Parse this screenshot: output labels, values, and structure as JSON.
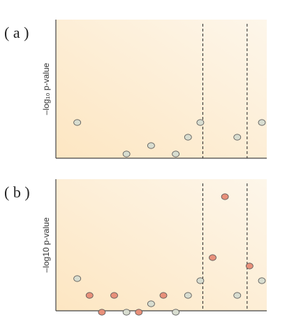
{
  "chart_data": [
    {
      "type": "scatter",
      "panel_label": "( a )",
      "ylabel": "–log₁₀ p-value",
      "xlim": [
        0,
        16
      ],
      "ylim": [
        0,
        10
      ],
      "series": [
        {
          "color": "#d8ddd0",
          "points": [
            {
              "x": 1,
              "y": 2.5
            },
            {
              "x": 5,
              "y": 1.0
            },
            {
              "x": 7,
              "y": 1.4
            },
            {
              "x": 9,
              "y": 1.0
            },
            {
              "x": 10,
              "y": 1.8
            },
            {
              "x": 11,
              "y": 2.5
            },
            {
              "x": 14,
              "y": 1.8
            },
            {
              "x": 16,
              "y": 2.5
            }
          ]
        }
      ],
      "vlines": [
        11.2,
        14.8
      ],
      "background_gradient": [
        "#fde9c8",
        "#fdf4e6"
      ]
    },
    {
      "type": "scatter",
      "panel_label": "( b )",
      "ylabel": "–log10 p-value",
      "xlim": [
        0,
        16
      ],
      "ylim": [
        0,
        10
      ],
      "series": [
        {
          "color": "#d8ddd0",
          "points": [
            {
              "x": 1,
              "y": 2.5
            },
            {
              "x": 5,
              "y": 0.9
            },
            {
              "x": 7,
              "y": 1.3
            },
            {
              "x": 9,
              "y": 0.9
            },
            {
              "x": 10,
              "y": 1.7
            },
            {
              "x": 11,
              "y": 2.4
            },
            {
              "x": 14,
              "y": 1.7
            },
            {
              "x": 16,
              "y": 2.4
            }
          ]
        },
        {
          "color": "#e8907a",
          "points": [
            {
              "x": 2,
              "y": 1.7
            },
            {
              "x": 3,
              "y": 0.9
            },
            {
              "x": 4,
              "y": 1.7
            },
            {
              "x": 6,
              "y": 0.9
            },
            {
              "x": 8,
              "y": 1.7
            },
            {
              "x": 12,
              "y": 3.5
            },
            {
              "x": 13,
              "y": 6.4
            },
            {
              "x": 15,
              "y": 3.1
            }
          ]
        }
      ],
      "vlines": [
        11.2,
        14.8
      ],
      "background_gradient": [
        "#fde9c8",
        "#fdf4e6"
      ]
    }
  ]
}
